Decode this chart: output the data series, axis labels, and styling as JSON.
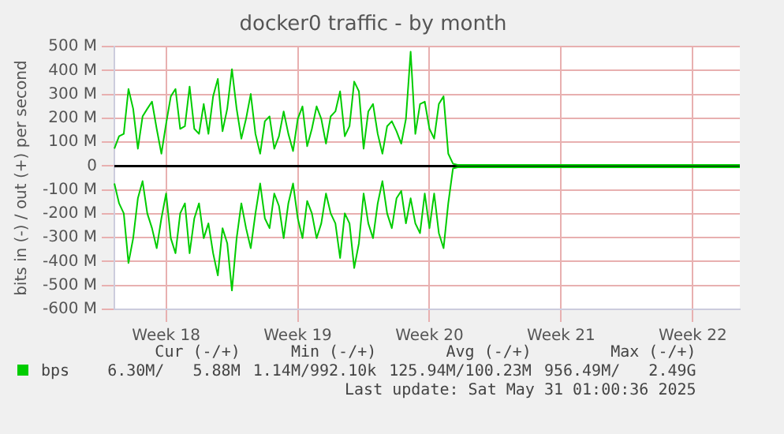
{
  "chart_data": {
    "type": "line",
    "title": "docker0 traffic - by month",
    "ylabel": "bits in (-) / out (+) per second",
    "categories": [
      null,
      null,
      null,
      null,
      null,
      null,
      null,
      null,
      null,
      null,
      null,
      "Week 18",
      null,
      null,
      null,
      null,
      null,
      null,
      null,
      null,
      null,
      null,
      null,
      null,
      null,
      null,
      null,
      null,
      null,
      null,
      null,
      null,
      null,
      null,
      null,
      null,
      null,
      null,
      null,
      "Week 19",
      null,
      null,
      null,
      null,
      null,
      null,
      null,
      null,
      null,
      null,
      null,
      null,
      null,
      null,
      null,
      null,
      null,
      null,
      null,
      null,
      null,
      null,
      null,
      null,
      null,
      null,
      null,
      "Week 20",
      null,
      null,
      null,
      null,
      null,
      null,
      null,
      null,
      null,
      null,
      null,
      null,
      null,
      null,
      null,
      null,
      null,
      null,
      null,
      null,
      null,
      null,
      null,
      null,
      null,
      null,
      null,
      "Week 21",
      null,
      null,
      null,
      null,
      null,
      null,
      null,
      null,
      null,
      null,
      null,
      null,
      null,
      null,
      null,
      null,
      null,
      null,
      null,
      null,
      null,
      null,
      null,
      null,
      null,
      null,
      null,
      "Week 22",
      null,
      null,
      null,
      null,
      null,
      null,
      null,
      null,
      null,
      null
    ],
    "series": [
      {
        "name": "bps",
        "color": "#00cc00",
        "values": [
          73,
          125,
          135,
          323,
          240,
          73,
          208,
          240,
          270,
          156,
          52,
          177,
          292,
          323,
          156,
          167,
          333,
          156,
          135,
          260,
          135,
          292,
          365,
          146,
          240,
          406,
          240,
          115,
          198,
          302,
          135,
          52,
          188,
          208,
          73,
          125,
          229,
          135,
          63,
          198,
          250,
          83,
          156,
          250,
          198,
          94,
          208,
          229,
          313,
          125,
          167,
          354,
          313,
          73,
          229,
          260,
          135,
          52,
          167,
          188,
          146,
          94,
          198,
          479,
          135,
          260,
          270,
          156,
          115,
          260,
          292,
          52,
          10,
          5,
          5,
          5,
          5,
          5,
          5,
          5,
          5,
          5,
          5,
          5,
          5,
          5,
          5,
          5,
          5,
          5,
          5,
          5,
          5,
          5,
          5,
          5,
          5,
          5,
          5,
          5,
          5,
          5,
          5,
          5,
          5,
          5,
          5,
          5,
          5,
          5,
          5,
          5,
          5,
          5,
          5,
          5,
          5,
          5,
          5,
          5,
          5,
          5,
          5,
          5,
          5,
          5,
          5,
          5,
          5,
          5,
          5,
          5,
          5,
          5
        ]
      },
      {
        "color": "#00cc00",
        "values": [
          -73,
          -156,
          -198,
          -406,
          -302,
          -135,
          -63,
          -198,
          -260,
          -344,
          -219,
          -115,
          -302,
          -365,
          -198,
          -156,
          -365,
          -219,
          -156,
          -302,
          -240,
          -365,
          -458,
          -260,
          -323,
          -521,
          -302,
          -156,
          -260,
          -344,
          -198,
          -73,
          -219,
          -260,
          -115,
          -167,
          -302,
          -156,
          -73,
          -219,
          -302,
          -146,
          -198,
          -302,
          -240,
          -115,
          -198,
          -240,
          -385,
          -198,
          -240,
          -427,
          -323,
          -115,
          -240,
          -302,
          -156,
          -63,
          -198,
          -260,
          -135,
          -104,
          -240,
          -135,
          -240,
          -281,
          -115,
          -260,
          -115,
          -281,
          -344,
          -156,
          -10,
          -5,
          -5,
          -5,
          -5,
          -5,
          -5,
          -5,
          -5,
          -5,
          -5,
          -5,
          -5,
          -5,
          -5,
          -5,
          -5,
          -5,
          -5,
          -5,
          -5,
          -5,
          -5,
          -5,
          -5,
          -5,
          -5,
          -5,
          -5,
          -5,
          -5,
          -5,
          -5,
          -5,
          -5,
          -5,
          -5,
          -5,
          -5,
          -5,
          -5,
          -5,
          -5,
          -5,
          -5,
          -5,
          -5,
          -5,
          -5,
          -5,
          -5,
          -5,
          -5,
          -5,
          -5,
          -5,
          -5,
          -5,
          -5,
          -5,
          -5,
          -5
        ]
      }
    ],
    "ylim": [
      -600,
      500
    ],
    "yticks": [
      {
        "value": -600,
        "label": "-600 M"
      },
      {
        "value": -500,
        "label": "-500 M"
      },
      {
        "value": -400,
        "label": "-400 M"
      },
      {
        "value": -300,
        "label": "-300 M"
      },
      {
        "value": -200,
        "label": "-200 M"
      },
      {
        "value": -100,
        "label": "-100 M"
      },
      0,
      {
        "value": 100,
        "label": "100 M"
      },
      {
        "value": 200,
        "label": "200 M"
      },
      {
        "value": 300,
        "label": "300 M"
      },
      {
        "value": 400,
        "label": "400 M"
      },
      {
        "value": 500,
        "label": "500 M"
      }
    ],
    "ref_lines": [
      {
        "axis": "y",
        "value": 0,
        "color": "#000000"
      }
    ],
    "grid": true,
    "legend": "bottom left",
    "marker": "none",
    "line_style": "solid",
    "annotations": [
      "Cur (-/+)",
      "Min (-/+)",
      "Avg (-/+)",
      "Max (-/+)",
      "6.30M/   5.88M",
      "1.14M/992.10k",
      "125.94M/100.23M",
      "956.49M/   2.49G",
      "Last update: Sat May 31 01:00:36 2025"
    ]
  }
}
